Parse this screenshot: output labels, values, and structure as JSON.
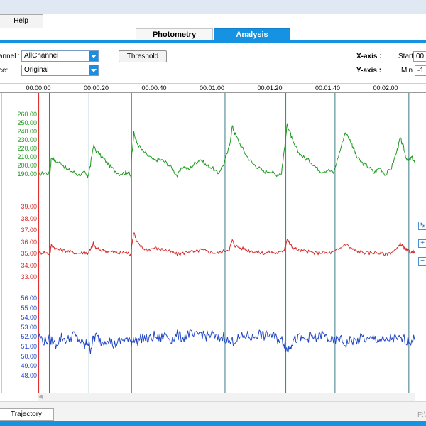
{
  "menu": {
    "help_label": "Help"
  },
  "tabs": [
    {
      "label": "Photometry",
      "active": false
    },
    {
      "label": "Analysis",
      "active": true
    }
  ],
  "controls": {
    "channel_label": "annel :",
    "channel_value": "AllChannel",
    "trace_label": "ce:",
    "trace_value": "Original",
    "threshold_label": "Threshold",
    "xaxis_label": "X-axis :",
    "yaxis_label": "Y-axis :",
    "start_label": "Start",
    "start_value": "00",
    "min_label": "Min",
    "min_value": "-1"
  },
  "time_axis": {
    "ticks": [
      "00:00:00",
      "00:00:20",
      "00:00:40",
      "00:01:00",
      "00:01:20",
      "00:01:40",
      "00:02:00"
    ]
  },
  "y_labels": {
    "green": [
      "260.00",
      "250.00",
      "240.00",
      "230.00",
      "220.00",
      "210.00",
      "200.00",
      "190.00"
    ],
    "red": [
      "39.00",
      "38.00",
      "37.00",
      "36.00",
      "35.00",
      "34.00",
      "33.00"
    ],
    "blue": [
      "56.00",
      "55.00",
      "54.00",
      "53.00",
      "52.00",
      "51.00",
      "50.00",
      "49.00",
      "48.00"
    ]
  },
  "colors": {
    "green": "#1e9a1e",
    "red": "#d42a2a",
    "blue": "#1f46c4",
    "event_line": "#3d7a8a",
    "start_line": "#e03030",
    "accent": "#1592e2"
  },
  "side_controls": [
    "fit-icon",
    "zoom-in-icon",
    "zoom-out-icon"
  ],
  "bottom": {
    "trajectory_label": "Trajectory",
    "path_text": "F:\\"
  },
  "chart_data": {
    "type": "line",
    "x_unit": "time (s)",
    "xlim": [
      0,
      130
    ],
    "event_markers_s": [
      3.8,
      17.5,
      32.2,
      64.5,
      85.5,
      102.5,
      128
    ],
    "series": [
      {
        "ylim": [
          186,
          266
        ],
        "x": [
          0,
          2,
          4,
          4.5,
          6,
          8,
          10,
          12,
          14,
          16,
          17,
          18,
          19,
          20,
          22,
          24,
          26,
          28,
          30,
          31,
          32,
          32.2,
          33,
          34,
          36,
          38,
          40,
          42,
          44,
          46,
          48,
          50,
          52,
          54,
          56,
          58,
          60,
          62,
          64,
          66,
          67,
          68,
          70,
          72,
          74,
          76,
          78,
          80,
          82,
          84,
          85,
          86,
          87,
          88,
          90,
          92,
          94,
          96,
          98,
          100,
          102,
          104,
          106,
          108,
          109,
          110,
          112,
          114,
          116,
          118,
          120,
          122,
          124,
          125,
          126,
          127,
          128,
          129,
          130
        ],
        "values": [
          205,
          207,
          206,
          222,
          218,
          216,
          210,
          208,
          205,
          207,
          203,
          214,
          233,
          228,
          222,
          216,
          210,
          206,
          207,
          208,
          203,
          222,
          245,
          236,
          228,
          223,
          219,
          220,
          217,
          212,
          204,
          213,
          210,
          216,
          220,
          214,
          212,
          206,
          215,
          232,
          252,
          244,
          233,
          223,
          216,
          212,
          208,
          209,
          205,
          207,
          230,
          254,
          245,
          236,
          226,
          221,
          218,
          212,
          208,
          210,
          207,
          226,
          246,
          237,
          230,
          222,
          216,
          213,
          207,
          212,
          205,
          212,
          229,
          240,
          233,
          222,
          218,
          222,
          217
        ]
      },
      {
        "ylim": [
          32.6,
          39.6
        ],
        "x": [
          0,
          2,
          4,
          4.5,
          6,
          8,
          10,
          12,
          14,
          16,
          17,
          18,
          19,
          20,
          22,
          24,
          26,
          28,
          30,
          31,
          32,
          32.2,
          33,
          34,
          36,
          38,
          40,
          42,
          44,
          46,
          48,
          50,
          52,
          54,
          56,
          58,
          60,
          62,
          64,
          66,
          67,
          68,
          70,
          72,
          74,
          76,
          78,
          80,
          82,
          84,
          85,
          86,
          87,
          88,
          90,
          92,
          94,
          96,
          98,
          100,
          102,
          104,
          106,
          108,
          109,
          110,
          112,
          114,
          116,
          118,
          120,
          122,
          124,
          125,
          126,
          127,
          128,
          129,
          130
        ],
        "values": [
          35.0,
          35.1,
          34.9,
          35.8,
          35.4,
          35.3,
          35.2,
          35.1,
          35.0,
          35.1,
          35.0,
          35.3,
          35.9,
          35.4,
          35.3,
          35.2,
          35.1,
          35.0,
          35.1,
          35.0,
          34.9,
          35.6,
          37.0,
          36.0,
          35.5,
          35.3,
          35.5,
          35.4,
          35.3,
          35.1,
          34.9,
          35.0,
          35.2,
          35.1,
          35.3,
          35.2,
          35.1,
          35.0,
          35.2,
          35.4,
          36.2,
          35.7,
          35.5,
          35.3,
          35.2,
          35.1,
          35.0,
          35.1,
          35.0,
          35.1,
          35.4,
          36.3,
          35.8,
          35.5,
          35.3,
          35.2,
          35.1,
          35.0,
          35.1,
          35.0,
          35.1,
          35.4,
          35.9,
          35.5,
          35.3,
          35.2,
          35.1,
          35.0,
          35.1,
          35.0,
          34.9,
          35.1,
          35.4,
          35.9,
          35.6,
          35.3,
          35.2,
          35.1,
          35.2
        ]
      },
      {
        "ylim": [
          47.4,
          56.6
        ],
        "x": [
          0,
          2,
          4,
          6,
          8,
          10,
          12,
          14,
          16,
          17,
          18,
          19,
          20,
          22,
          24,
          26,
          28,
          30,
          32,
          33,
          34,
          36,
          38,
          40,
          42,
          44,
          46,
          48,
          50,
          52,
          54,
          56,
          58,
          60,
          62,
          64,
          66,
          68,
          70,
          72,
          74,
          76,
          78,
          80,
          82,
          84,
          85,
          86,
          87,
          88,
          90,
          92,
          94,
          96,
          98,
          100,
          102,
          104,
          106,
          108,
          110,
          112,
          114,
          116,
          118,
          120,
          122,
          124,
          126,
          128,
          130
        ],
        "values": [
          52.3,
          51.6,
          51.9,
          51.3,
          52.1,
          51.7,
          52.4,
          51.8,
          51.1,
          51.6,
          50.8,
          51.9,
          52.2,
          51.5,
          52.0,
          51.2,
          51.6,
          51.9,
          51.5,
          52.0,
          51.6,
          52.1,
          51.8,
          52.2,
          51.9,
          52.4,
          51.8,
          52.3,
          52.0,
          52.5,
          52.1,
          52.6,
          52.2,
          52.4,
          51.9,
          52.2,
          51.5,
          51.8,
          52.0,
          52.3,
          52.0,
          52.5,
          52.2,
          52.4,
          52.0,
          51.8,
          51.4,
          50.6,
          51.2,
          51.7,
          52.0,
          51.8,
          52.2,
          51.9,
          52.4,
          52.0,
          51.5,
          52.0,
          51.3,
          51.8,
          51.6,
          52.1,
          51.7,
          52.0,
          51.8,
          51.6,
          52.0,
          51.8,
          51.9,
          51.7,
          51.8
        ]
      }
    ]
  }
}
